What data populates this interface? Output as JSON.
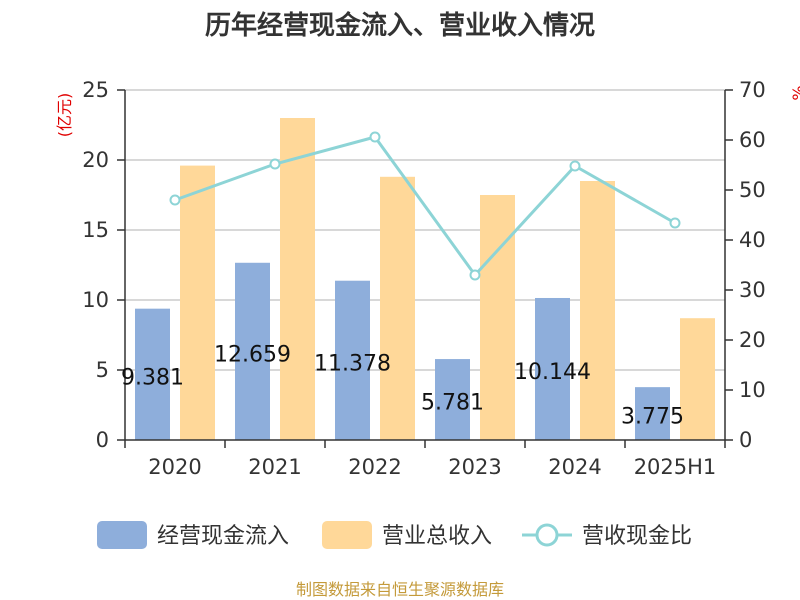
{
  "chart_data": {
    "type": "bar",
    "title": "历年经营现金流入、营业收入情况",
    "categories": [
      "2020",
      "2021",
      "2022",
      "2023",
      "2024",
      "2025H1"
    ],
    "series": [
      {
        "name": "经营现金流入",
        "kind": "bar",
        "axis": "left",
        "color": "#8eaedb",
        "values": [
          9.381,
          12.659,
          11.378,
          5.781,
          10.144,
          3.775
        ],
        "labels": [
          "9.381",
          "12.659",
          "11.378",
          "5.781",
          "10.144",
          "3.775"
        ]
      },
      {
        "name": "营业总收入",
        "kind": "bar",
        "axis": "left",
        "color": "#ffd899",
        "values": [
          19.6,
          23.0,
          18.8,
          17.5,
          18.5,
          8.7
        ]
      },
      {
        "name": "营收现金比",
        "kind": "line",
        "axis": "right",
        "color": "#8dd4d6",
        "values": [
          48,
          55.2,
          60.6,
          33.0,
          54.8,
          43.4
        ]
      }
    ],
    "left_axis": {
      "unit": "(亿元)",
      "ylim": [
        0,
        25
      ],
      "ticks": [
        0,
        5,
        10,
        15,
        20,
        25
      ]
    },
    "right_axis": {
      "unit": "%",
      "ylim": [
        0,
        70
      ],
      "ticks": [
        0,
        10,
        20,
        30,
        40,
        50,
        60,
        70
      ]
    },
    "grid": true,
    "legend_position": "bottom"
  },
  "source_note": "制图数据来自恒生聚源数据库"
}
